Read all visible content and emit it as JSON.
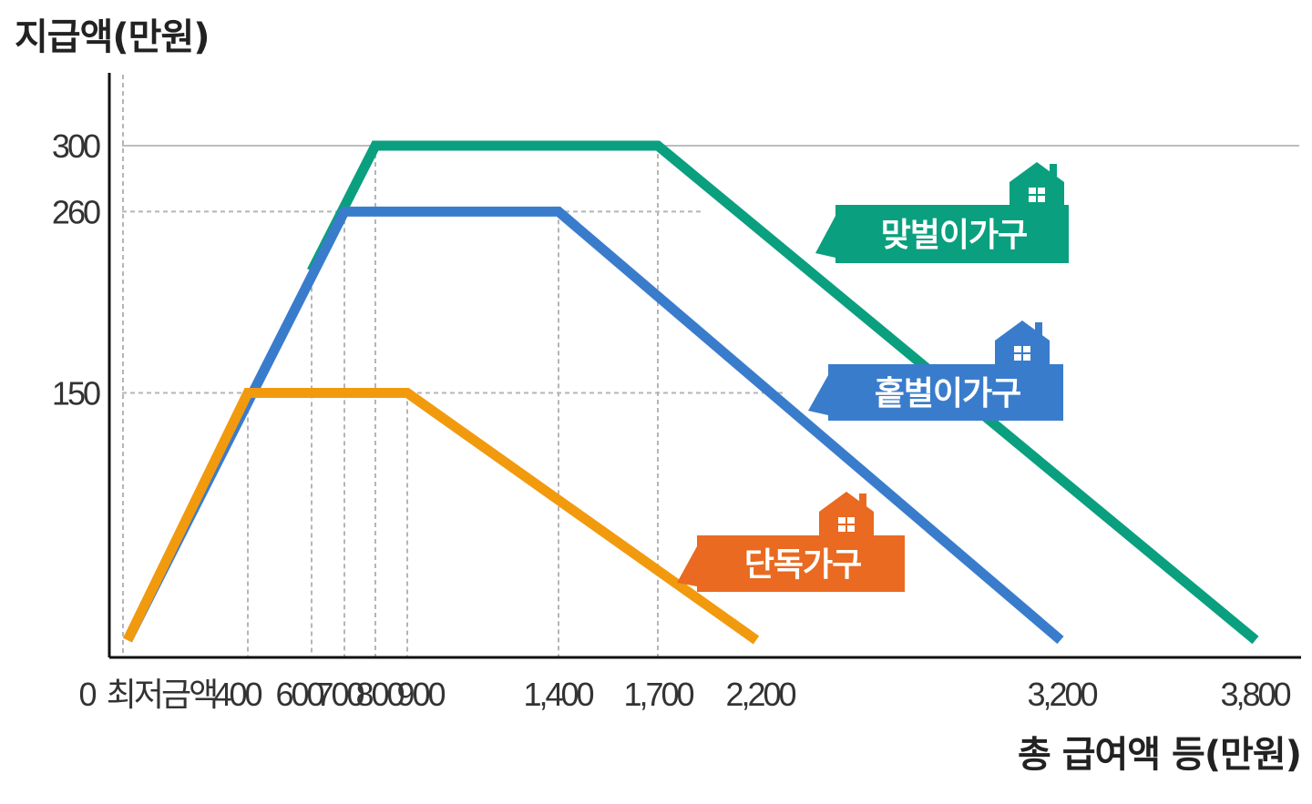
{
  "chart_data": {
    "type": "line",
    "ylabel": "지급액(만원)",
    "xlabel": "총 급여액 등(만원)",
    "x_ticks": [
      {
        "x": 0,
        "label": "0"
      },
      {
        "x": 120,
        "label": "최저금액"
      },
      {
        "x": 400,
        "label": "400"
      },
      {
        "x": 600,
        "label": "600"
      },
      {
        "x": 700,
        "label": "700"
      },
      {
        "x": 800,
        "label": "800"
      },
      {
        "x": 900,
        "label": "900"
      },
      {
        "x": 1400,
        "label": "1,400"
      },
      {
        "x": 1700,
        "label": "1,700"
      },
      {
        "x": 2200,
        "label": "2,200"
      },
      {
        "x": 3200,
        "label": "3,200"
      },
      {
        "x": 3800,
        "label": "3,800"
      }
    ],
    "y_ticks": [
      {
        "y": 150,
        "label": "150"
      },
      {
        "y": 260,
        "label": "260"
      },
      {
        "y": 300,
        "label": "300"
      }
    ],
    "series": [
      {
        "name": "맞벌이가구",
        "color": "#0aa07f",
        "points": [
          [
            600,
            224
          ],
          [
            800,
            300
          ],
          [
            1700,
            300
          ],
          [
            3800,
            0
          ]
        ]
      },
      {
        "name": "홑벌이가구",
        "color": "#3a7ccc",
        "points": [
          [
            0,
            0
          ],
          [
            700,
            260
          ],
          [
            1400,
            260
          ],
          [
            3200,
            0
          ]
        ]
      },
      {
        "name": "단독가구",
        "color": "#f29a0e",
        "points": [
          [
            0,
            0
          ],
          [
            400,
            150
          ],
          [
            900,
            150
          ],
          [
            2200,
            0
          ]
        ]
      }
    ],
    "label_colors": {
      "맞벌이가구": "#0aa07f",
      "홑벌이가구": "#3a7ccc",
      "단독가구": "#e96a20"
    },
    "grid": "dashed guides",
    "legend": "inline labels with house icons"
  }
}
